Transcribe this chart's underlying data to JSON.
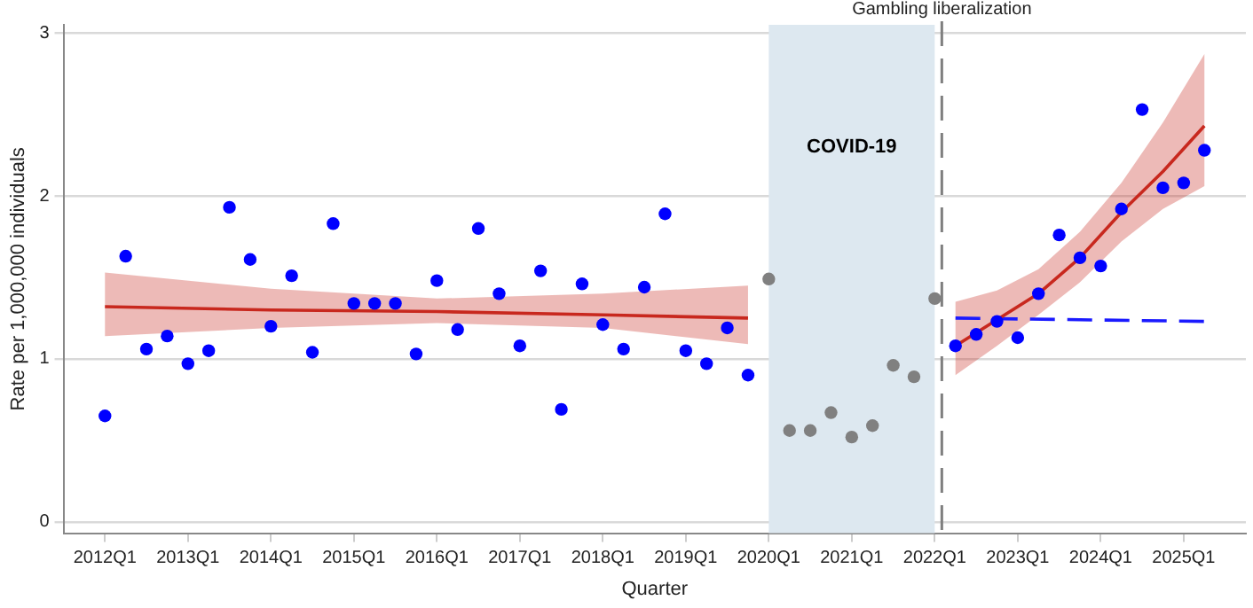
{
  "chart_data": {
    "type": "scatter",
    "xlabel": "Quarter",
    "ylabel": "Rate per 1,000,000 individuals",
    "categories": [
      "2012Q1",
      null,
      null,
      null,
      "2013Q1",
      null,
      null,
      null,
      "2014Q1",
      null,
      null,
      null,
      "2015Q1",
      null,
      null,
      null,
      "2016Q1",
      null,
      null,
      null,
      "2017Q1",
      null,
      null,
      null,
      "2018Q1",
      null,
      null,
      null,
      "2019Q1",
      null,
      null,
      null,
      "2020Q1",
      null,
      null,
      null,
      "2021Q1",
      null,
      null,
      null,
      "2022Q1",
      null,
      null,
      null,
      "2023Q1",
      null,
      null,
      null,
      "2024Q1",
      null,
      null,
      null,
      "2025Q1",
      null
    ],
    "ylim": [
      -0.07,
      3.05
    ],
    "yticks": [
      0,
      1,
      2,
      3
    ],
    "grid": "y",
    "legend": false,
    "marker": "circle",
    "bands": [
      {
        "axis": "x",
        "from": "2020Q1",
        "to": "2022Q1",
        "label": "COVID-19",
        "color": "#dde8f0"
      }
    ],
    "ref_lines": [
      {
        "axis": "x",
        "value": "2022Q1",
        "label": "Gambling liberalization",
        "color": "#7f7f7f",
        "line_style": "dashed"
      }
    ],
    "series": [
      {
        "color": "#0000ff",
        "values": [
          0.65,
          1.63,
          1.06,
          1.14,
          0.97,
          1.05,
          1.93,
          1.61,
          1.2,
          1.51,
          1.04,
          1.83,
          1.34,
          1.34,
          1.34,
          1.03,
          1.48,
          1.18,
          1.8,
          1.4,
          1.08,
          1.54,
          0.69,
          1.46,
          1.21,
          1.06,
          1.44,
          1.89,
          1.05,
          0.97,
          1.19,
          0.9,
          null,
          null,
          null,
          null,
          null,
          null,
          null,
          null,
          null,
          null,
          null,
          null,
          null,
          null,
          null,
          null,
          null,
          null,
          null,
          null,
          null,
          null
        ]
      },
      {
        "color": "#808080",
        "values": [
          null,
          null,
          null,
          null,
          null,
          null,
          null,
          null,
          null,
          null,
          null,
          null,
          null,
          null,
          null,
          null,
          null,
          null,
          null,
          null,
          null,
          null,
          null,
          null,
          null,
          null,
          null,
          null,
          null,
          null,
          null,
          null,
          1.49,
          0.56,
          0.56,
          0.67,
          0.52,
          0.59,
          0.96,
          0.89,
          1.37,
          null,
          null,
          null,
          null,
          null,
          null,
          null,
          null,
          null,
          null,
          null,
          null,
          null
        ]
      },
      {
        "color": "#0000ff",
        "values": [
          null,
          null,
          null,
          null,
          null,
          null,
          null,
          null,
          null,
          null,
          null,
          null,
          null,
          null,
          null,
          null,
          null,
          null,
          null,
          null,
          null,
          null,
          null,
          null,
          null,
          null,
          null,
          null,
          null,
          null,
          null,
          null,
          null,
          null,
          null,
          null,
          null,
          null,
          null,
          null,
          null,
          1.08,
          1.15,
          1.23,
          1.13,
          1.4,
          1.76,
          1.62,
          1.57,
          1.92,
          2.53,
          2.05,
          2.08,
          2.28
        ]
      },
      {
        "type": "line",
        "color": "#c8281e",
        "line_style": "solid",
        "marker": "none",
        "values": [
          1.32,
          null,
          null,
          null,
          null,
          null,
          null,
          null,
          1.3,
          null,
          null,
          null,
          null,
          null,
          null,
          null,
          1.29,
          null,
          null,
          null,
          null,
          null,
          null,
          null,
          1.27,
          null,
          null,
          null,
          null,
          null,
          null,
          1.25,
          null,
          null,
          null,
          null,
          null,
          null,
          null,
          null,
          null,
          null,
          null,
          null,
          null,
          null,
          null,
          null,
          null,
          null,
          null,
          null,
          null,
          null
        ],
        "lower": [
          1.14,
          null,
          null,
          null,
          null,
          null,
          null,
          null,
          1.19,
          null,
          null,
          null,
          null,
          null,
          null,
          null,
          1.22,
          null,
          null,
          null,
          null,
          null,
          null,
          null,
          1.19,
          null,
          null,
          null,
          null,
          null,
          null,
          1.09,
          null,
          null,
          null,
          null,
          null,
          null,
          null,
          null,
          null,
          null,
          null,
          null,
          null,
          null,
          null,
          null,
          null,
          null,
          null,
          null,
          null,
          null
        ],
        "upper": [
          1.53,
          null,
          null,
          null,
          null,
          null,
          null,
          null,
          1.43,
          null,
          null,
          null,
          null,
          null,
          null,
          null,
          1.37,
          null,
          null,
          null,
          null,
          null,
          null,
          null,
          1.4,
          null,
          null,
          null,
          null,
          null,
          null,
          1.45,
          null,
          null,
          null,
          null,
          null,
          null,
          null,
          null,
          null,
          null,
          null,
          null,
          null,
          null,
          null,
          null,
          null,
          null,
          null,
          null,
          null,
          null
        ]
      },
      {
        "type": "line",
        "color": "#c8281e",
        "line_style": "solid",
        "marker": "none",
        "values": [
          null,
          null,
          null,
          null,
          null,
          null,
          null,
          null,
          null,
          null,
          null,
          null,
          null,
          null,
          null,
          null,
          null,
          null,
          null,
          null,
          null,
          null,
          null,
          null,
          null,
          null,
          null,
          null,
          null,
          null,
          null,
          null,
          null,
          null,
          null,
          null,
          null,
          null,
          null,
          null,
          null,
          1.08,
          null,
          1.24,
          null,
          1.4,
          null,
          1.62,
          null,
          1.9,
          null,
          2.15,
          null,
          2.43
        ],
        "lower": [
          null,
          null,
          null,
          null,
          null,
          null,
          null,
          null,
          null,
          null,
          null,
          null,
          null,
          null,
          null,
          null,
          null,
          null,
          null,
          null,
          null,
          null,
          null,
          null,
          null,
          null,
          null,
          null,
          null,
          null,
          null,
          null,
          null,
          null,
          null,
          null,
          null,
          null,
          null,
          null,
          null,
          0.9,
          null,
          1.08,
          null,
          1.27,
          null,
          1.47,
          null,
          1.72,
          null,
          1.92,
          null,
          2.06
        ],
        "upper": [
          null,
          null,
          null,
          null,
          null,
          null,
          null,
          null,
          null,
          null,
          null,
          null,
          null,
          null,
          null,
          null,
          null,
          null,
          null,
          null,
          null,
          null,
          null,
          null,
          null,
          null,
          null,
          null,
          null,
          null,
          null,
          null,
          null,
          null,
          null,
          null,
          null,
          null,
          null,
          null,
          null,
          1.35,
          null,
          1.42,
          null,
          1.55,
          null,
          1.78,
          null,
          2.08,
          null,
          2.45,
          null,
          2.87
        ]
      },
      {
        "type": "line",
        "color": "#1a1aff",
        "line_style": "dashed",
        "marker": "none",
        "values": [
          null,
          null,
          null,
          null,
          null,
          null,
          null,
          null,
          null,
          null,
          null,
          null,
          null,
          null,
          null,
          null,
          null,
          null,
          null,
          null,
          null,
          null,
          null,
          null,
          null,
          null,
          null,
          null,
          null,
          null,
          null,
          null,
          null,
          null,
          null,
          null,
          null,
          null,
          null,
          null,
          null,
          1.25,
          null,
          null,
          null,
          null,
          null,
          null,
          null,
          null,
          null,
          null,
          null,
          1.23
        ]
      }
    ]
  }
}
